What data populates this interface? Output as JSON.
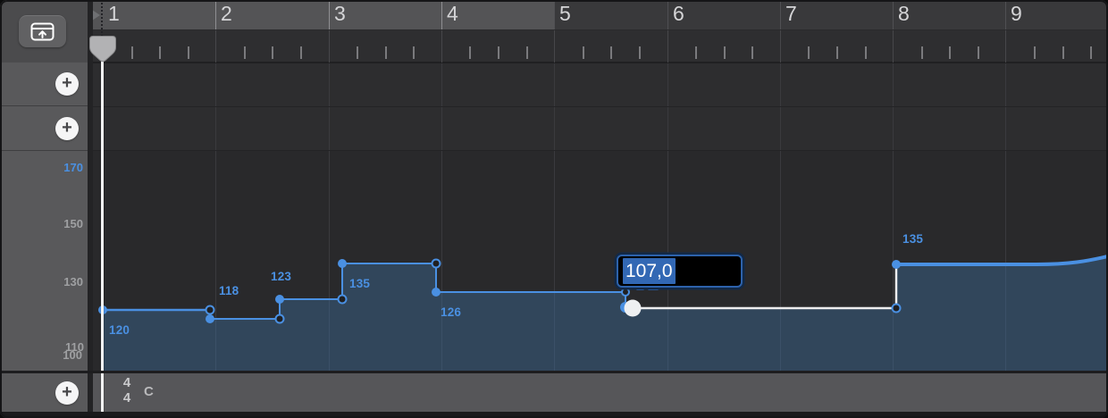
{
  "corner": {
    "global_tracks_button": "global-tracks-panel"
  },
  "ruler": {
    "bars": [
      "1",
      "2",
      "3",
      "4",
      "5",
      "6",
      "7",
      "8",
      "9"
    ]
  },
  "sidebar": {
    "add_button_glyph": "+",
    "tempo_scale": [
      "170",
      "150",
      "130",
      "110",
      "100"
    ]
  },
  "tempo_track": {
    "unit": "bpm",
    "points": [
      {
        "label": "120"
      },
      {
        "label": "118"
      },
      {
        "label": "123"
      },
      {
        "label": "135"
      },
      {
        "label": "126"
      },
      {
        "label": "",
        "editing": true
      },
      {
        "label": "135"
      }
    ],
    "editor_value": "107,0"
  },
  "signature_track": {
    "numerator": "4",
    "denominator": "4",
    "key": "C"
  },
  "colors": {
    "accent_blue": "#4a90e2",
    "selection_blue": "#3268b4",
    "curve_fill": "rgba(63,115,165,0.4)",
    "white_segment": "#ededee"
  }
}
